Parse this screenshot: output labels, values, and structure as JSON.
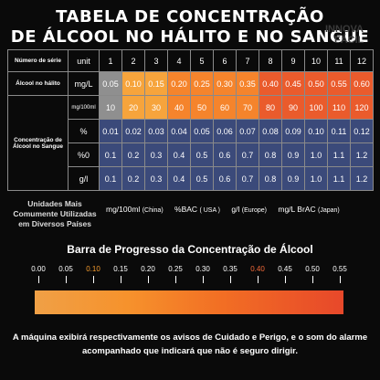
{
  "title_line1": "TABELA DE CONCENTRAÇÃO",
  "title_line2": "DE ÁLCOOL NO HÁLITO E NO SANGUE",
  "watermark_line1": "INNOVA",
  "watermark_line2": "FÁCIL",
  "table": {
    "header_label": "Número de série",
    "header_unit": "unit",
    "columns": [
      "1",
      "2",
      "3",
      "4",
      "5",
      "6",
      "7",
      "8",
      "9",
      "10",
      "11",
      "12"
    ],
    "breath": {
      "label": "Álcool no hálito",
      "unit": "mg/L",
      "values": [
        "0.05",
        "0.10",
        "0.15",
        "0.20",
        "0.25",
        "0.30",
        "0.35",
        "0.40",
        "0.45",
        "0.50",
        "0.55",
        "0.60"
      ]
    },
    "blood_label": "Concentração de Álcool no Sangue",
    "blood_rows": [
      {
        "unit": "mg/100ml",
        "values": [
          "10",
          "20",
          "30",
          "40",
          "50",
          "60",
          "70",
          "80",
          "90",
          "100",
          "110",
          "120"
        ]
      },
      {
        "unit": "%",
        "values": [
          "0.01",
          "0.02",
          "0.03",
          "0.04",
          "0.05",
          "0.06",
          "0.07",
          "0.08",
          "0.09",
          "0.10",
          "0.11",
          "0.12"
        ]
      },
      {
        "unit": "%0",
        "values": [
          "0.1",
          "0.2",
          "0.3",
          "0.4",
          "0.5",
          "0.6",
          "0.7",
          "0.8",
          "0.9",
          "1.0",
          "1.1",
          "1.2"
        ]
      },
      {
        "unit": "g/l",
        "values": [
          "0.1",
          "0.2",
          "0.3",
          "0.4",
          "0.5",
          "0.6",
          "0.7",
          "0.8",
          "0.9",
          "1.0",
          "1.1",
          "1.2"
        ]
      }
    ]
  },
  "units_label": "Unidades Mais Comumente Utilizadas em Diversos Países",
  "units": [
    {
      "unit": "mg/100ml",
      "country": "(China)"
    },
    {
      "unit": "%BAC",
      "country": "( USA )"
    },
    {
      "unit": "g/l",
      "country": "(Europe)"
    },
    {
      "unit": "mg/L BrAC",
      "country": "(Japan)"
    }
  ],
  "bar_title": "Barra de Progresso da Concentração de Álcool",
  "bar_ticks": [
    {
      "label": "0.00",
      "color": "#ffffff"
    },
    {
      "label": "0.05",
      "color": "#ffffff"
    },
    {
      "label": "0.10",
      "color": "#f39a2e"
    },
    {
      "label": "0.15",
      "color": "#ffffff"
    },
    {
      "label": "0.20",
      "color": "#ffffff"
    },
    {
      "label": "0.25",
      "color": "#ffffff"
    },
    {
      "label": "0.30",
      "color": "#ffffff"
    },
    {
      "label": "0.35",
      "color": "#ffffff"
    },
    {
      "label": "0.40",
      "color": "#f26a3a"
    },
    {
      "label": "0.45",
      "color": "#ffffff"
    },
    {
      "label": "0.50",
      "color": "#ffffff"
    },
    {
      "label": "0.55",
      "color": "#ffffff"
    }
  ],
  "note": "A máquina exibirá respectivamente os avisos de Cuidado e Perigo, e o som do alarme acompanhado que  indicará que não é seguro dirigir.",
  "colors": {
    "grey_cell": "#8f8f8f",
    "orange_light": "#f6a43c",
    "orange_mid": "#f5842c",
    "orange_dark": "#ea5b2c",
    "blue_cell": "#3b4a7a"
  }
}
